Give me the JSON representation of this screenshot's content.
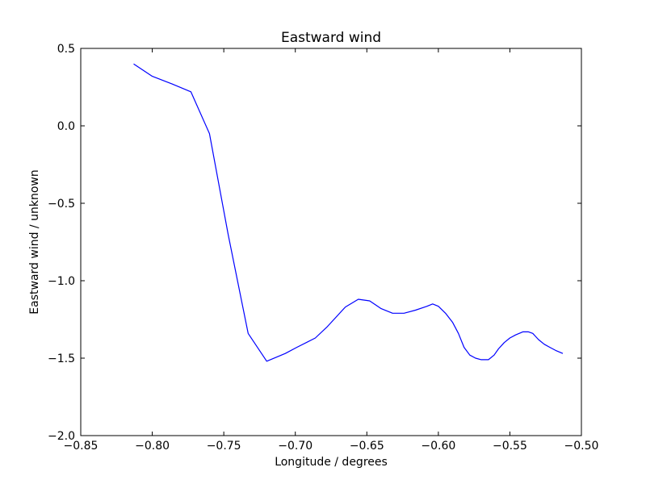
{
  "chart_data": {
    "type": "line",
    "title": "Eastward wind",
    "xlabel": "Longitude / degrees",
    "ylabel": "Eastward wind / unknown",
    "xlim": [
      -0.85,
      -0.5
    ],
    "ylim": [
      -2.0,
      0.5
    ],
    "grid": false,
    "xticks": [
      -0.85,
      -0.8,
      -0.75,
      -0.7,
      -0.65,
      -0.6,
      -0.55,
      -0.5
    ],
    "xtick_labels": [
      "−0.85",
      "−0.80",
      "−0.75",
      "−0.70",
      "−0.65",
      "−0.60",
      "−0.55",
      "−0.50"
    ],
    "yticks": [
      0.5,
      0.0,
      -0.5,
      -1.0,
      -1.5,
      -2.0
    ],
    "ytick_labels": [
      "0.5",
      "0.0",
      "−0.5",
      "−1.0",
      "−1.5",
      "−2.0"
    ],
    "series": [
      {
        "color": "#0000ff",
        "x": [
          -0.813,
          -0.8,
          -0.786,
          -0.773,
          -0.76,
          -0.747,
          -0.733,
          -0.72,
          -0.707,
          -0.699,
          -0.686,
          -0.678,
          -0.665,
          -0.656,
          -0.648,
          -0.64,
          -0.632,
          -0.624,
          -0.616,
          -0.608,
          -0.604,
          -0.6,
          -0.595,
          -0.59,
          -0.586,
          -0.582,
          -0.578,
          -0.574,
          -0.57,
          -0.565,
          -0.561,
          -0.558,
          -0.554,
          -0.55,
          -0.546,
          -0.541,
          -0.537,
          -0.534,
          -0.532,
          -0.53,
          -0.526,
          -0.522,
          -0.518,
          -0.513
        ],
        "y": [
          0.4,
          0.32,
          0.27,
          0.22,
          -0.05,
          -0.7,
          -1.34,
          -1.52,
          -1.47,
          -1.43,
          -1.37,
          -1.3,
          -1.17,
          -1.12,
          -1.13,
          -1.18,
          -1.21,
          -1.21,
          -1.19,
          -1.165,
          -1.15,
          -1.165,
          -1.21,
          -1.27,
          -1.34,
          -1.43,
          -1.48,
          -1.5,
          -1.51,
          -1.51,
          -1.48,
          -1.44,
          -1.4,
          -1.37,
          -1.35,
          -1.33,
          -1.33,
          -1.34,
          -1.36,
          -1.38,
          -1.41,
          -1.43,
          -1.45,
          -1.47
        ]
      }
    ]
  }
}
